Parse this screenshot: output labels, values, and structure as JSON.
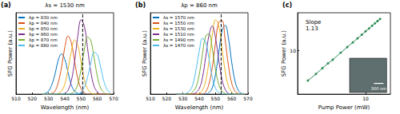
{
  "chart_data": [
    {
      "type": "line",
      "title": "(a)",
      "subtitle": "λs = 1530 nm",
      "x_label": "Wavelength (nm)",
      "y_label": "SFG Power (a.u.)",
      "xlim": [
        510,
        570
      ],
      "xticks": [
        510,
        520,
        530,
        540,
        550,
        560,
        570
      ],
      "ylim": [
        0,
        1.05
      ],
      "tick_labels": "x",
      "legend": "upper left",
      "x": [
        526,
        528,
        530,
        532,
        534,
        536,
        538,
        540,
        542,
        544,
        546,
        548,
        550,
        552,
        554,
        556,
        558,
        560,
        562,
        564,
        566,
        568
      ],
      "series": [
        {
          "name": "λp = 830 nm",
          "color": "#0072BD",
          "values": [
            0,
            0.01,
            0.04,
            0.12,
            0.26,
            0.44,
            0.52,
            0.45,
            0.28,
            0.12,
            0.04,
            0.01,
            0,
            0,
            0,
            0,
            0,
            0,
            0,
            0,
            0,
            0
          ]
        },
        {
          "name": "λp = 840 nm",
          "color": "#D95319",
          "values": [
            0,
            0,
            0,
            0.01,
            0.04,
            0.15,
            0.35,
            0.6,
            0.75,
            0.66,
            0.43,
            0.2,
            0.07,
            0.02,
            0,
            0,
            0,
            0,
            0,
            0,
            0,
            0
          ]
        },
        {
          "name": "λp = 850 nm",
          "color": "#EDB120",
          "values": [
            0,
            0,
            0,
            0,
            0,
            0.01,
            0.04,
            0.13,
            0.32,
            0.55,
            0.7,
            0.63,
            0.41,
            0.19,
            0.07,
            0.02,
            0,
            0,
            0,
            0,
            0,
            0
          ]
        },
        {
          "name": "λp = 860 nm",
          "color": "#7E2F8E",
          "values": [
            0,
            0,
            0,
            0,
            0,
            0,
            0,
            0.01,
            0.05,
            0.17,
            0.42,
            0.75,
            0.96,
            0.88,
            0.59,
            0.29,
            0.1,
            0.03,
            0,
            0,
            0,
            0
          ]
        },
        {
          "name": "λp = 870 nm",
          "color": "#77AC30",
          "values": [
            0,
            0,
            0,
            0,
            0,
            0,
            0,
            0,
            0,
            0.01,
            0.04,
            0.13,
            0.32,
            0.57,
            0.74,
            0.69,
            0.47,
            0.23,
            0.08,
            0.02,
            0,
            0
          ]
        },
        {
          "name": "λp = 880 nm",
          "color": "#4DBEEE",
          "values": [
            0,
            0,
            0,
            0,
            0,
            0,
            0,
            0,
            0,
            0,
            0,
            0,
            0.03,
            0.09,
            0.22,
            0.4,
            0.54,
            0.51,
            0.35,
            0.17,
            0.06,
            0.02
          ]
        },
        {
          "x": [
            551,
            551
          ],
          "values": [
            0,
            1.05
          ],
          "color": "#000000",
          "line_style": "dashed"
        }
      ]
    },
    {
      "type": "line",
      "title": "(b)",
      "subtitle": "λp = 860 nm",
      "x_label": "Wavelength (nm)",
      "y_label": "SFG Power (a.u.)",
      "xlim": [
        510,
        570
      ],
      "xticks": [
        510,
        520,
        530,
        540,
        550,
        560,
        570
      ],
      "ylim": [
        0,
        1.05
      ],
      "tick_labels": "x",
      "legend": "upper left",
      "x": [
        526,
        528,
        530,
        532,
        534,
        536,
        538,
        540,
        542,
        544,
        546,
        548,
        550,
        552,
        554,
        556,
        558,
        560,
        562,
        564,
        566,
        568
      ],
      "series": [
        {
          "name": "λs = 1570 nm",
          "color": "#0072BD",
          "values": [
            0,
            0,
            0,
            0,
            0,
            0,
            0,
            0,
            0,
            0,
            0.02,
            0.08,
            0.25,
            0.53,
            0.81,
            0.89,
            0.72,
            0.41,
            0.17,
            0.05,
            0.01,
            0
          ]
        },
        {
          "name": "λs = 1550 nm",
          "color": "#D95319",
          "values": [
            0,
            0,
            0,
            0,
            0,
            0,
            0,
            0,
            0,
            0.03,
            0.13,
            0.34,
            0.66,
            0.93,
            0.95,
            0.69,
            0.37,
            0.14,
            0.04,
            0.01,
            0,
            0
          ]
        },
        {
          "name": "λs = 1530 nm",
          "color": "#EDB120",
          "values": [
            0,
            0,
            0,
            0,
            0,
            0,
            0,
            0.01,
            0.05,
            0.17,
            0.42,
            0.75,
            0.96,
            0.88,
            0.59,
            0.29,
            0.1,
            0.03,
            0,
            0,
            0,
            0
          ]
        },
        {
          "name": "λs = 1510 nm",
          "color": "#7E2F8E",
          "values": [
            0,
            0,
            0,
            0,
            0,
            0,
            0.02,
            0.07,
            0.21,
            0.48,
            0.76,
            0.88,
            0.73,
            0.44,
            0.19,
            0.06,
            0.01,
            0,
            0,
            0,
            0,
            0
          ]
        },
        {
          "name": "λs = 1490 nm",
          "color": "#77AC30",
          "values": [
            0,
            0,
            0,
            0,
            0,
            0.03,
            0.09,
            0.25,
            0.52,
            0.75,
            0.78,
            0.59,
            0.32,
            0.13,
            0.04,
            0.01,
            0,
            0,
            0,
            0,
            0,
            0
          ]
        },
        {
          "name": "λs = 1470 nm",
          "color": "#4DBEEE",
          "values": [
            0,
            0,
            0,
            0.01,
            0.04,
            0.12,
            0.31,
            0.55,
            0.72,
            0.67,
            0.46,
            0.22,
            0.08,
            0.02,
            0,
            0,
            0,
            0,
            0,
            0,
            0,
            0
          ]
        },
        {
          "x": [
            553.5,
            553.5
          ],
          "values": [
            0,
            1.05
          ],
          "color": "#000000",
          "line_style": "dashed"
        }
      ]
    },
    {
      "type": "line",
      "title": "(c)",
      "log": true,
      "x_label": "Pump Power (mW)",
      "y_label": "SFG Power (a.u.)",
      "xlim": [
        1.5,
        20
      ],
      "xticks": [
        10
      ],
      "ylim": [
        2,
        40
      ],
      "yticks": [
        10
      ],
      "annotations": [
        "Slope\n1.13"
      ],
      "inset": {
        "scale_bar": "300 nm"
      },
      "x": [
        2,
        2.5,
        3,
        3.5,
        4,
        5,
        6,
        7,
        8,
        9,
        10,
        11,
        12,
        13,
        14,
        15
      ],
      "series": [
        {
          "color": "#2E8B57",
          "marker": "circle",
          "values": [
            3.3,
            4.2,
            5.2,
            6.2,
            7.1,
            9.2,
            11.3,
            13.4,
            15.6,
            17.8,
            20.2,
            22.4,
            24.8,
            27.1,
            29.5,
            31.9
          ]
        }
      ]
    }
  ]
}
